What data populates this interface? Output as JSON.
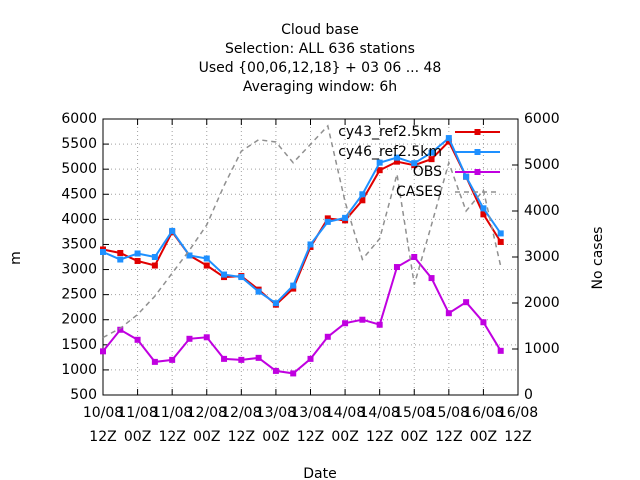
{
  "chart_data": {
    "type": "line",
    "title_lines": [
      "Cloud base",
      "Selection: ALL    636 stations",
      "Used {00,06,12,18} + 03 06 ... 48",
      "Averaging window:  6h"
    ],
    "xlabel": "Date",
    "ylabel": "m",
    "y2label": "No cases",
    "x": [
      0,
      6,
      12,
      18,
      24,
      30,
      36,
      42,
      48,
      54,
      60,
      66,
      72,
      78,
      84,
      90,
      96,
      102,
      108,
      114,
      120,
      126,
      132,
      138
    ],
    "xlim": [
      0,
      144
    ],
    "xticks": [
      {
        "value": 0,
        "label": [
          "10/08",
          "12Z"
        ]
      },
      {
        "value": 12,
        "label": [
          "11/08",
          "00Z"
        ]
      },
      {
        "value": 24,
        "label": [
          "11/08",
          "12Z"
        ]
      },
      {
        "value": 36,
        "label": [
          "12/08",
          "00Z"
        ]
      },
      {
        "value": 48,
        "label": [
          "12/08",
          "12Z"
        ]
      },
      {
        "value": 60,
        "label": [
          "13/08",
          "00Z"
        ]
      },
      {
        "value": 72,
        "label": [
          "13/08",
          "12Z"
        ]
      },
      {
        "value": 84,
        "label": [
          "14/08",
          "00Z"
        ]
      },
      {
        "value": 96,
        "label": [
          "14/08",
          "12Z"
        ]
      },
      {
        "value": 108,
        "label": [
          "15/08",
          "00Z"
        ]
      },
      {
        "value": 120,
        "label": [
          "15/08",
          "12Z"
        ]
      },
      {
        "value": 132,
        "label": [
          "16/08",
          "00Z"
        ]
      },
      {
        "value": 144,
        "label": [
          "16/08",
          "12Z"
        ]
      }
    ],
    "ylim": [
      500,
      6000
    ],
    "yticks": [
      500,
      1000,
      1500,
      2000,
      2500,
      3000,
      3500,
      4000,
      4500,
      5000,
      5500,
      6000
    ],
    "y2lim": [
      0,
      6000
    ],
    "y2ticks": [
      0,
      1000,
      2000,
      3000,
      4000,
      5000,
      6000
    ],
    "grid": true,
    "series": [
      {
        "name": "cy43_ref2.5km",
        "color": "#e00000",
        "marker": true,
        "values": [
          3400,
          3330,
          3170,
          3080,
          3750,
          3280,
          3080,
          2850,
          2870,
          2600,
          2300,
          2620,
          3450,
          4020,
          3980,
          4380,
          4980,
          5150,
          5080,
          5200,
          5550,
          4850,
          4100,
          3550
        ]
      },
      {
        "name": "cy46_ref2.5km",
        "color": "#1e90ff",
        "marker": true,
        "values": [
          3350,
          3200,
          3320,
          3250,
          3770,
          3280,
          3220,
          2900,
          2850,
          2560,
          2330,
          2680,
          3500,
          3950,
          4030,
          4500,
          5130,
          5230,
          5120,
          5330,
          5620,
          4850,
          4220,
          3720
        ]
      },
      {
        "name": "OBS",
        "color": "#c000e0",
        "marker": true,
        "values": [
          1370,
          1800,
          1600,
          1160,
          1200,
          1620,
          1650,
          1220,
          1200,
          1240,
          980,
          930,
          1220,
          1660,
          1930,
          2000,
          1900,
          3050,
          3250,
          2830,
          2130,
          2350,
          1950,
          1380
        ]
      },
      {
        "name": "CASES",
        "color": "#909090",
        "axis": "y2",
        "dashed": true,
        "marker": false,
        "values": [
          1250,
          1450,
          1750,
          2150,
          2650,
          3150,
          3700,
          4550,
          5300,
          5550,
          5500,
          5050,
          5450,
          5850,
          4200,
          2950,
          3400,
          4800,
          2400,
          3700,
          5050,
          4000,
          4450,
          2800
        ]
      }
    ]
  }
}
